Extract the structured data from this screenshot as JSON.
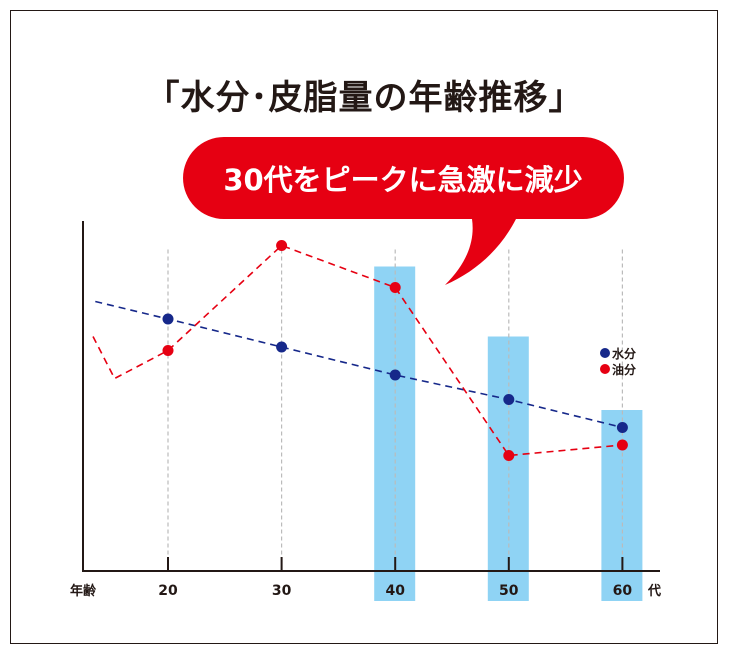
{
  "chart_data": {
    "type": "line",
    "title": "「水分･皮脂量の年齢推移」",
    "callout": "30代をピークに急激に減少",
    "xlabel": "年齢",
    "x_unit": "代",
    "categories": [
      "20",
      "30",
      "40",
      "50",
      "60"
    ],
    "x": [
      20,
      30,
      40,
      50,
      60
    ],
    "y_axis_printed": false,
    "ylim": [
      0,
      100
    ],
    "grid": "vertical dashed at categories",
    "legend_position": "right",
    "series": [
      {
        "name": "水分",
        "color": "#16288a",
        "style": "dashed",
        "lead_in": [
          [
            13.6,
            77
          ]
        ],
        "values": [
          72,
          64,
          56,
          49,
          41
        ]
      },
      {
        "name": "油分",
        "color": "#e60012",
        "style": "dashed",
        "lead_in": [
          [
            13.4,
            67
          ],
          [
            15.3,
            55
          ]
        ],
        "values": [
          63,
          93,
          81,
          33,
          36
        ]
      }
    ],
    "highlight_bars": {
      "color": "#8fd3f4",
      "x": [
        40,
        50,
        60
      ],
      "values": [
        87,
        67,
        46
      ]
    }
  },
  "colors": {
    "callout": "#e60012",
    "axis": "#231815",
    "grid": "#bbbbbb"
  }
}
